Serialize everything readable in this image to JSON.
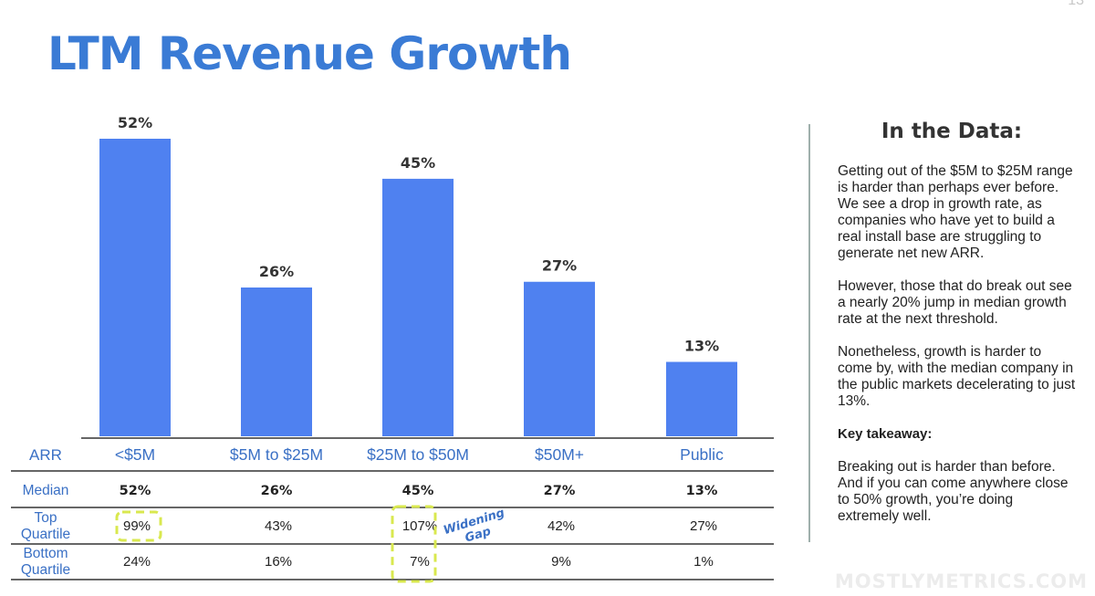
{
  "page_number": "13",
  "title": "LTM Revenue Growth",
  "chart_data": {
    "type": "bar",
    "categories": [
      "<$5M",
      "$5M to $25M",
      "$25M to $50M",
      "$50M+",
      "Public"
    ],
    "values": [
      52,
      26,
      45,
      27,
      13
    ],
    "value_labels": [
      "52%",
      "26%",
      "45%",
      "27%",
      "13%"
    ],
    "color": "#4f81f0",
    "ylim": [
      0,
      52
    ],
    "table": {
      "header_label": "ARR",
      "rows": [
        {
          "label": "Median",
          "values": [
            "52%",
            "26%",
            "45%",
            "27%",
            "13%"
          ],
          "bold": true
        },
        {
          "label": "Top Quartile",
          "values": [
            "99%",
            "43%",
            "107%",
            "42%",
            "27%"
          ],
          "bold": false
        },
        {
          "label": "Bottom Quartile",
          "values": [
            "24%",
            "16%",
            "7%",
            "9%",
            "1%"
          ],
          "bold": false
        }
      ]
    },
    "annotation": "Widening Gap",
    "highlight_color": "#d9e84f"
  },
  "sidebar": {
    "heading": "In the Data:",
    "paragraph1": "Getting out of the $5M to $25M range is harder than perhaps ever before. We see a drop in growth rate, as companies who have yet to build a real install base are struggling to generate net new ARR.",
    "paragraph2": "However, those that do break out see a nearly 20% jump in median growth rate at the next threshold.",
    "paragraph3": "Nonetheless, growth is harder to come by, with the median company in the public markets decelerating to just 13%.",
    "takeaway_label": "Key takeaway:",
    "paragraph4": "Breaking out is harder than before. And if you can come anywhere close to 50% growth, you’re doing extremely well."
  },
  "watermark": "MOSTLYMETRICS.COM"
}
